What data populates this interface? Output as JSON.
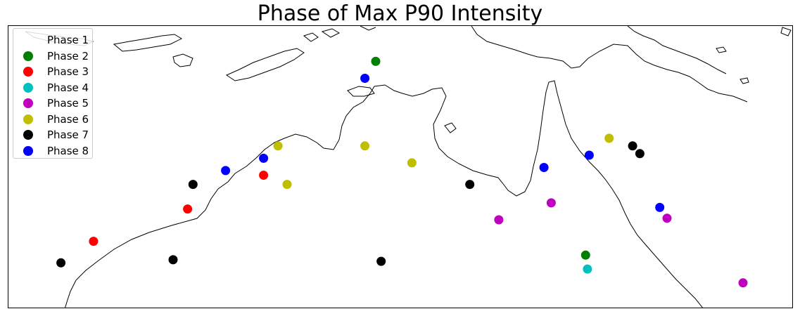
{
  "title": "Phase of Max P90 Intensity",
  "legend": [
    {
      "label": "Phase 1",
      "color": "#ffffff"
    },
    {
      "label": "Phase 2",
      "color": "#008000"
    },
    {
      "label": "Phase 3",
      "color": "#ff0000"
    },
    {
      "label": "Phase 4",
      "color": "#00bfbf"
    },
    {
      "label": "Phase 5",
      "color": "#bf00bf"
    },
    {
      "label": "Phase 6",
      "color": "#bfbf00"
    },
    {
      "label": "Phase 7",
      "color": "#000000"
    },
    {
      "label": "Phase 8",
      "color": "#0000ff"
    }
  ],
  "map": {
    "region": "Northern Australia",
    "coastline_color": "#000000",
    "background_color": "#ffffff"
  },
  "markers": [
    {
      "phase": 2,
      "lon": 131.2,
      "lat": -11.3
    },
    {
      "phase": 8,
      "lon": 130.6,
      "lat": -12.4
    },
    {
      "phase": 6,
      "lon": 125.8,
      "lat": -16.8
    },
    {
      "phase": 6,
      "lon": 130.6,
      "lat": -16.8
    },
    {
      "phase": 6,
      "lon": 133.2,
      "lat": -17.9
    },
    {
      "phase": 6,
      "lon": 126.3,
      "lat": -19.3
    },
    {
      "phase": 6,
      "lon": 144.1,
      "lat": -16.3
    },
    {
      "phase": 8,
      "lon": 125.0,
      "lat": -17.6
    },
    {
      "phase": 8,
      "lon": 122.9,
      "lat": -18.4
    },
    {
      "phase": 8,
      "lon": 140.5,
      "lat": -18.2
    },
    {
      "phase": 8,
      "lon": 143.0,
      "lat": -17.4
    },
    {
      "phase": 8,
      "lon": 146.9,
      "lat": -20.8
    },
    {
      "phase": 3,
      "lon": 125.0,
      "lat": -18.7
    },
    {
      "phase": 3,
      "lon": 120.8,
      "lat": -20.9
    },
    {
      "phase": 3,
      "lon": 115.6,
      "lat": -23.0
    },
    {
      "phase": 7,
      "lon": 121.1,
      "lat": -19.3
    },
    {
      "phase": 7,
      "lon": 136.4,
      "lat": -19.3
    },
    {
      "phase": 7,
      "lon": 145.4,
      "lat": -16.8
    },
    {
      "phase": 7,
      "lon": 145.8,
      "lat": -17.3
    },
    {
      "phase": 7,
      "lon": 120.0,
      "lat": -24.2
    },
    {
      "phase": 7,
      "lon": 131.5,
      "lat": -24.3
    },
    {
      "phase": 7,
      "lon": 113.8,
      "lat": -24.4
    },
    {
      "phase": 5,
      "lon": 138.0,
      "lat": -21.6
    },
    {
      "phase": 5,
      "lon": 140.9,
      "lat": -20.5
    },
    {
      "phase": 5,
      "lon": 147.3,
      "lat": -21.5
    },
    {
      "phase": 5,
      "lon": 151.5,
      "lat": -25.7
    },
    {
      "phase": 2,
      "lon": 142.8,
      "lat": -23.9
    },
    {
      "phase": 4,
      "lon": 142.9,
      "lat": -24.8
    }
  ]
}
